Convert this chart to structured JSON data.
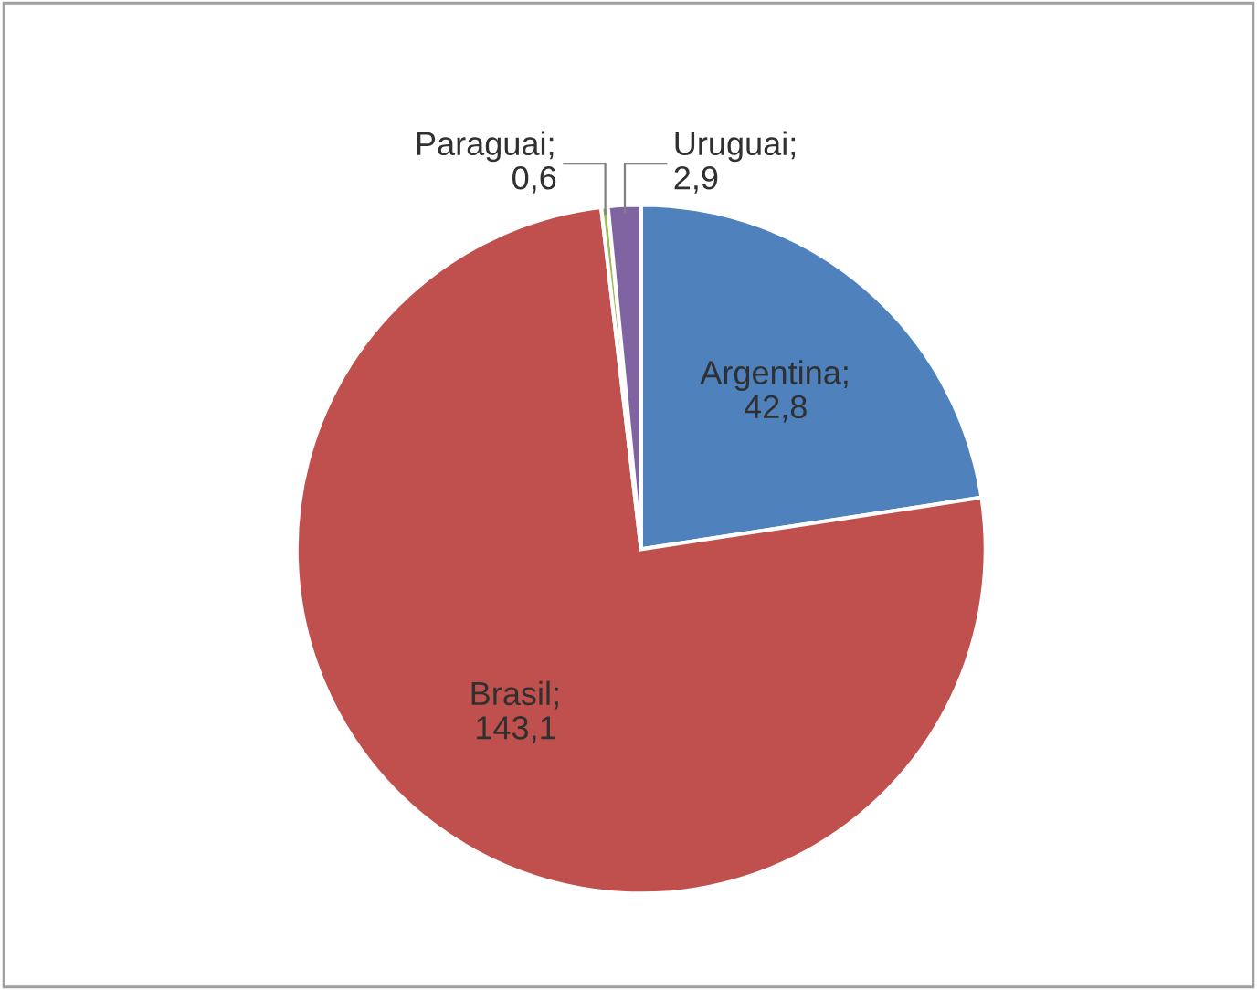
{
  "chart_data": {
    "type": "pie",
    "categories": [
      "Argentina",
      "Brasil",
      "Paraguai",
      "Uruguai"
    ],
    "values": [
      42.8,
      143.1,
      0.6,
      2.9
    ],
    "value_labels": [
      ";\n42,8",
      ";\n143,1",
      ";\n0,6",
      ";\n2,9"
    ],
    "colors": [
      "#4f81bd",
      "#c0504d",
      "#9bbb59",
      "#8064a2"
    ],
    "legend": false
  }
}
